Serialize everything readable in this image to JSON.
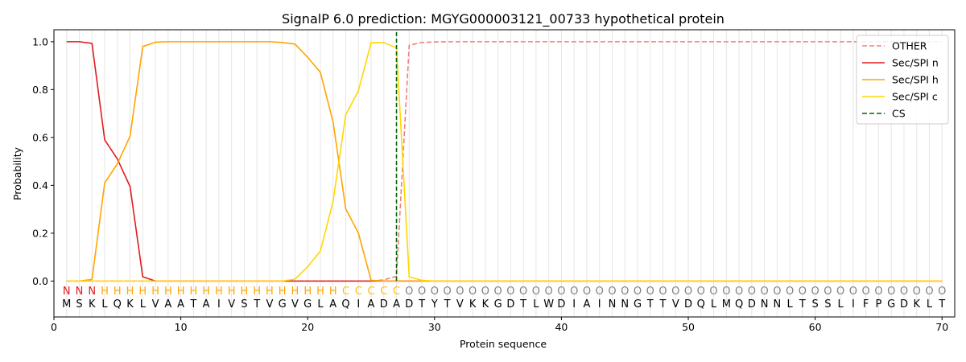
{
  "chart_data": {
    "type": "line",
    "title": "SignalP 6.0 prediction: MGYG000003121_00733 hypothetical protein",
    "xlabel": "Protein sequence",
    "ylabel": "Probability",
    "xlim": [
      0,
      71
    ],
    "ylim": [
      -0.15,
      1.05
    ],
    "x_ticks": [
      0,
      10,
      20,
      30,
      40,
      50,
      60,
      70
    ],
    "y_ticks": [
      0.0,
      0.2,
      0.4,
      0.6,
      0.8,
      1.0
    ],
    "legend_position": "top-right",
    "x": [
      1,
      2,
      3,
      4,
      5,
      6,
      7,
      8,
      9,
      10,
      11,
      12,
      13,
      14,
      15,
      16,
      17,
      18,
      19,
      20,
      21,
      22,
      23,
      24,
      25,
      26,
      27,
      28,
      29,
      30,
      31,
      32,
      33,
      34,
      35,
      36,
      37,
      38,
      39,
      40,
      41,
      42,
      43,
      44,
      45,
      46,
      47,
      48,
      49,
      50,
      51,
      52,
      53,
      54,
      55,
      56,
      57,
      58,
      59,
      60,
      61,
      62,
      63,
      64,
      65,
      66,
      67,
      68,
      69,
      70
    ],
    "sequence": [
      "M",
      "S",
      "K",
      "L",
      "Q",
      "K",
      "L",
      "V",
      "A",
      "A",
      "T",
      "A",
      "I",
      "V",
      "S",
      "T",
      "V",
      "G",
      "V",
      "G",
      "L",
      "A",
      "Q",
      "I",
      "A",
      "D",
      "A",
      "D",
      "T",
      "Y",
      "T",
      "V",
      "K",
      "K",
      "G",
      "D",
      "T",
      "L",
      "W",
      "D",
      "I",
      "A",
      "I",
      "N",
      "N",
      "G",
      "T",
      "T",
      "V",
      "D",
      "Q",
      "L",
      "M",
      "Q",
      "D",
      "N",
      "N",
      "L",
      "T",
      "S",
      "S",
      "L",
      "I",
      "F",
      "P",
      "G",
      "D",
      "K",
      "L",
      "T"
    ],
    "labels": [
      "N",
      "N",
      "N",
      "H",
      "H",
      "H",
      "H",
      "H",
      "H",
      "H",
      "H",
      "H",
      "H",
      "H",
      "H",
      "H",
      "H",
      "H",
      "H",
      "H",
      "H",
      "H",
      "C",
      "C",
      "C",
      "C",
      "C",
      "O",
      "O",
      "O",
      "O",
      "O",
      "O",
      "O",
      "O",
      "O",
      "O",
      "O",
      "O",
      "O",
      "O",
      "O",
      "O",
      "O",
      "O",
      "O",
      "O",
      "O",
      "O",
      "O",
      "O",
      "O",
      "O",
      "O",
      "O",
      "O",
      "O",
      "O",
      "O",
      "O",
      "O",
      "O",
      "O",
      "O",
      "O",
      "O",
      "O",
      "O",
      "O",
      "O"
    ],
    "label_colors": {
      "N": "#e41a1c",
      "H": "#ffa500",
      "C": "#ffc000",
      "O": "#808080"
    },
    "series": [
      {
        "name": "OTHER",
        "color": "#f08080",
        "dash": true,
        "values": [
          0,
          0,
          0,
          0,
          0,
          0,
          0,
          0,
          0,
          0,
          0,
          0,
          0,
          0,
          0,
          0,
          0,
          0,
          0,
          0,
          0,
          0,
          0,
          0,
          0,
          0.005,
          0.02,
          0.985,
          0.997,
          0.999,
          1,
          1,
          1,
          1,
          1,
          1,
          1,
          1,
          1,
          1,
          1,
          1,
          1,
          1,
          1,
          1,
          1,
          1,
          1,
          1,
          1,
          1,
          1,
          1,
          1,
          1,
          1,
          1,
          1,
          1,
          1,
          1,
          1,
          1,
          1,
          1,
          1,
          1,
          1,
          1
        ]
      },
      {
        "name": "Sec/SPI n",
        "color": "#e41a1c",
        "dash": false,
        "values": [
          1.0,
          1.0,
          0.993,
          0.59,
          0.51,
          0.395,
          0.018,
          0,
          0,
          0,
          0,
          0,
          0,
          0,
          0,
          0,
          0,
          0,
          0,
          0,
          0,
          0,
          0,
          0,
          0,
          0,
          0,
          0,
          0,
          0,
          0,
          0,
          0,
          0,
          0,
          0,
          0,
          0,
          0,
          0,
          0,
          0,
          0,
          0,
          0,
          0,
          0,
          0,
          0,
          0,
          0,
          0,
          0,
          0,
          0,
          0,
          0,
          0,
          0,
          0,
          0,
          0,
          0,
          0,
          0,
          0,
          0,
          0,
          0,
          0
        ]
      },
      {
        "name": "Sec/SPI h",
        "color": "#ffa500",
        "dash": false,
        "values": [
          0,
          0,
          0.007,
          0.41,
          0.49,
          0.605,
          0.98,
          0.998,
          1,
          1,
          1,
          1,
          1,
          1,
          1,
          1,
          1,
          0.997,
          0.99,
          0.935,
          0.872,
          0.665,
          0.302,
          0.2,
          0.003,
          0,
          0,
          0,
          0,
          0,
          0,
          0,
          0,
          0,
          0,
          0,
          0,
          0,
          0,
          0,
          0,
          0,
          0,
          0,
          0,
          0,
          0,
          0,
          0,
          0,
          0,
          0,
          0,
          0,
          0,
          0,
          0,
          0,
          0,
          0,
          0,
          0,
          0,
          0,
          0,
          0,
          0,
          0,
          0,
          0
        ]
      },
      {
        "name": "Sec/SPI c",
        "color": "#ffd700",
        "dash": false,
        "values": [
          0,
          0,
          0,
          0,
          0,
          0,
          0,
          0,
          0,
          0,
          0,
          0,
          0,
          0,
          0,
          0,
          0,
          0,
          0.008,
          0.06,
          0.125,
          0.333,
          0.695,
          0.795,
          0.996,
          0.996,
          0.975,
          0.018,
          0.003,
          0,
          0,
          0,
          0,
          0,
          0,
          0,
          0,
          0,
          0,
          0,
          0,
          0,
          0,
          0,
          0,
          0,
          0,
          0,
          0,
          0,
          0,
          0,
          0,
          0,
          0,
          0,
          0,
          0,
          0,
          0,
          0,
          0,
          0,
          0,
          0,
          0,
          0,
          0,
          0,
          0
        ]
      }
    ],
    "cs": {
      "name": "CS",
      "color": "#006400",
      "x": 27
    }
  }
}
